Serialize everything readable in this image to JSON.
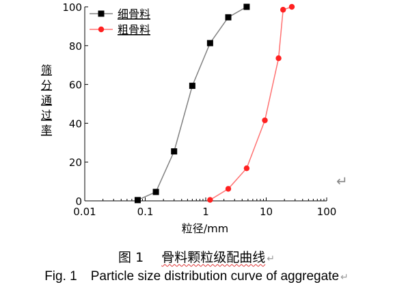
{
  "chart_data": {
    "type": "line",
    "xscale": "log",
    "xlim": [
      0.01,
      100
    ],
    "ylim": [
      0,
      100
    ],
    "xticks": [
      "0.01",
      "0.1",
      "1",
      "10",
      "100"
    ],
    "yticks": [
      "0",
      "20",
      "40",
      "60",
      "80",
      "100"
    ],
    "xlabel": "粒径/mm",
    "ylabel": "筛分通过率",
    "legend_position": "top-left",
    "grid": false,
    "series": [
      {
        "name": "细骨料",
        "marker": "square",
        "color": "#000000",
        "line_color": "#808080",
        "x": [
          0.075,
          0.15,
          0.3,
          0.6,
          1.18,
          2.36,
          4.75
        ],
        "y": [
          0.4,
          4.6,
          25.5,
          59.3,
          81.3,
          94.6,
          100
        ]
      },
      {
        "name": "粗骨料",
        "marker": "circle",
        "color": "#ff2020",
        "line_color": "#ff7070",
        "x": [
          1.18,
          2.36,
          4.75,
          9.5,
          16,
          19,
          26.5
        ],
        "y": [
          0.5,
          6.2,
          16.8,
          41.5,
          73.5,
          98.5,
          100
        ]
      }
    ]
  },
  "caption": {
    "cn_label": "图 1",
    "cn_text": "骨料颗粒级配曲线",
    "en_label": "Fig. 1",
    "en_text": "Particle size distribution curve of aggregate"
  },
  "marks": {
    "return": "↵"
  }
}
